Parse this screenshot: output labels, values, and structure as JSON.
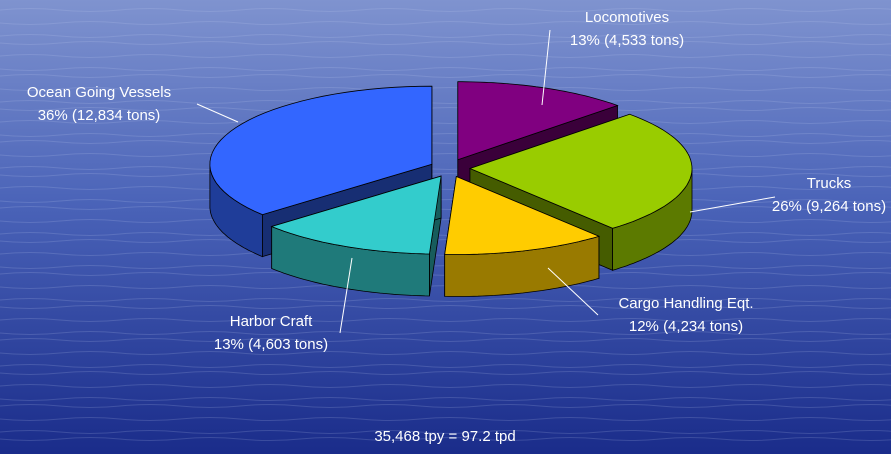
{
  "chart_data": {
    "type": "pie",
    "categories": [
      "Locomotives",
      "Trucks",
      "Cargo Handling Eqt.",
      "Harbor Craft",
      "Ocean Going Vessels"
    ],
    "values": [
      4533,
      9264,
      4234,
      4603,
      12834
    ],
    "value_labels": [
      "13% (4,533 tons)",
      "26% (9,264 tons)",
      "12% (4,234 tons)",
      "13% (4,603 tons)",
      "36% (12,834 tons)"
    ],
    "colors": [
      "#800080",
      "#99cc00",
      "#ffcc00",
      "#33cccc",
      "#3366ff"
    ],
    "note": "35,468 tpy = 97.2 tpd"
  }
}
